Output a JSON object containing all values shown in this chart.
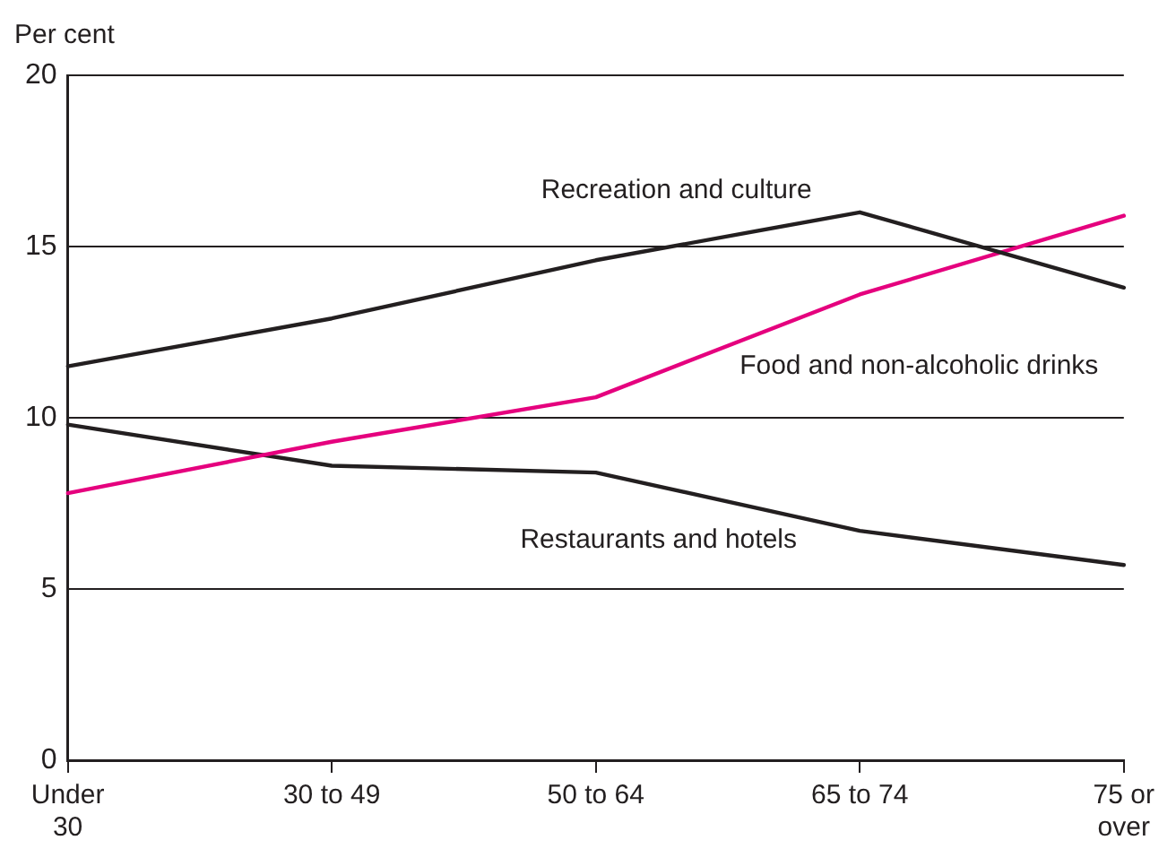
{
  "chart_data": {
    "type": "line",
    "ylabel": "Per cent",
    "categories": [
      "Under 30",
      "30 to 49",
      "50 to 64",
      "65 to 74",
      "75 or over"
    ],
    "series": [
      {
        "name": "Recreation and culture",
        "color": "#231f20",
        "values": [
          11.5,
          12.9,
          14.6,
          16.0,
          13.8
        ]
      },
      {
        "name": "Food and non-alcoholic drinks",
        "color": "#e5007e",
        "values": [
          7.8,
          9.3,
          10.6,
          13.6,
          15.9
        ]
      },
      {
        "name": "Restaurants and hotels",
        "color": "#231f20",
        "values": [
          9.8,
          8.6,
          8.4,
          6.7,
          5.7
        ]
      }
    ],
    "ylim": [
      0,
      20
    ],
    "yticks": [
      0,
      5,
      10,
      15,
      20
    ],
    "grid": "y",
    "legend": false,
    "marker": "none",
    "line_style": "solid"
  }
}
